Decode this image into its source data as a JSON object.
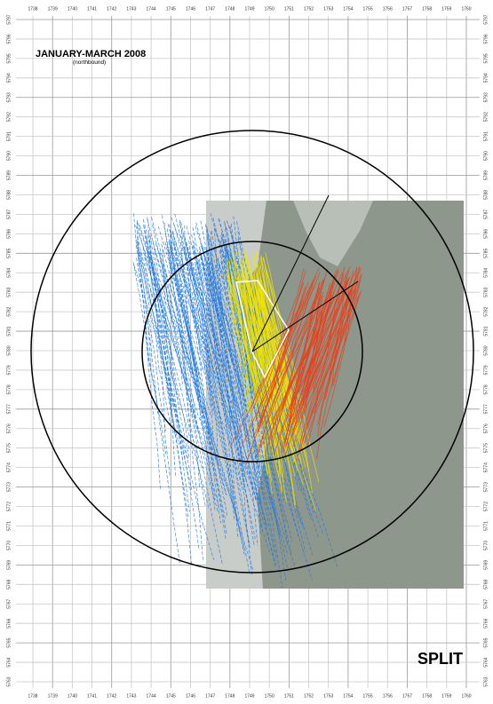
{
  "title": "JANUARY-MARCH 2008",
  "subtitle": "(northbound)",
  "label": "SPLIT",
  "x_labels": [
    "1738",
    "1739",
    "1740",
    "1741",
    "1742",
    "1743",
    "1744",
    "1745",
    "1746",
    "1747",
    "1748",
    "1749",
    "1750",
    "1751",
    "1752",
    "1753",
    "1754",
    "1755",
    "1756",
    "1757",
    "1758",
    "1759",
    "1760"
  ],
  "y_labels": [
    "5797",
    "5796",
    "5795",
    "5794",
    "5793",
    "5792",
    "5791",
    "5790",
    "5789",
    "5788",
    "5787",
    "5786",
    "5785",
    "5784",
    "5783",
    "5782",
    "5781",
    "5780",
    "5779",
    "5778",
    "5777",
    "5776",
    "5775",
    "5774",
    "5773",
    "5772",
    "5771",
    "5770",
    "5769",
    "5768",
    "5767",
    "5766",
    "5765",
    "5764",
    "5763"
  ]
}
